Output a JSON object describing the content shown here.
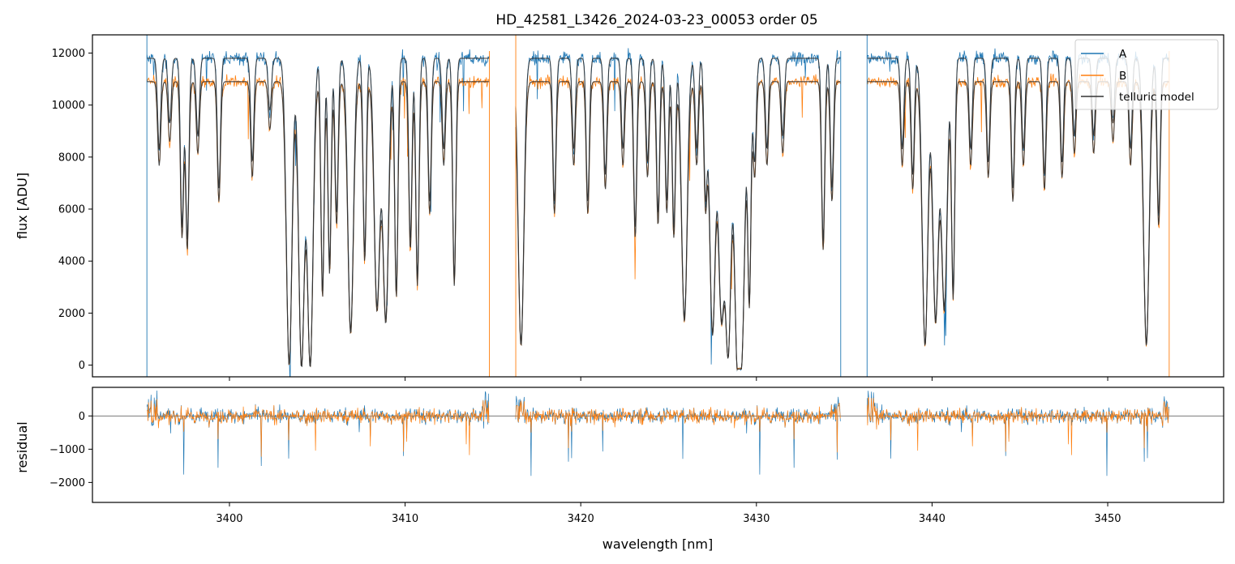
{
  "chart_data": [
    {
      "type": "line",
      "title": "HD_42581_L3426_2024-03-23_00053  order 05",
      "ylabel": "flux [ADU]",
      "xlim": [
        3392.2,
        3456.6
      ],
      "ylim": [
        -450,
        12700
      ],
      "x_ticks": [
        3400,
        3410,
        3420,
        3430,
        3440,
        3450
      ],
      "y_ticks": [
        0,
        2000,
        4000,
        6000,
        8000,
        10000,
        12000
      ],
      "y_tick_labels": [
        "0",
        "2000",
        "4000",
        "6000",
        "8000",
        "10000",
        "12000"
      ],
      "legend": {
        "placement": "top-right",
        "entries": [
          "A",
          "B",
          "telluric model"
        ]
      },
      "series": [
        {
          "name": "A",
          "color": "#1f77b4",
          "continuum": 11800
        },
        {
          "name": "B",
          "color": "#ff7f0e",
          "continuum": 10900
        },
        {
          "name": "telluric model",
          "color": "#333333"
        }
      ],
      "data_segments": [
        [
          3395.3,
          3414.8
        ],
        [
          3416.3,
          3434.8
        ],
        [
          3436.3,
          3453.5
        ]
      ],
      "absorption_lines": [
        [
          3396.0,
          3500
        ],
        [
          3396.6,
          2500
        ],
        [
          3397.3,
          6500
        ],
        [
          3397.6,
          7000
        ],
        [
          3398.2,
          3000
        ],
        [
          3399.4,
          5000
        ],
        [
          3401.3,
          4000
        ],
        [
          3402.3,
          2000
        ],
        [
          3403.4,
          11800
        ],
        [
          3404.1,
          11800
        ],
        [
          3404.6,
          11800
        ],
        [
          3405.3,
          9000
        ],
        [
          3405.7,
          8000
        ],
        [
          3406.1,
          6000
        ],
        [
          3406.9,
          10500
        ],
        [
          3407.7,
          7500
        ],
        [
          3408.4,
          9500
        ],
        [
          3408.9,
          10000
        ],
        [
          3409.5,
          9000
        ],
        [
          3410.3,
          7000
        ],
        [
          3410.7,
          8500
        ],
        [
          3411.4,
          5500
        ],
        [
          3412.2,
          3500
        ],
        [
          3412.8,
          8500
        ],
        [
          3416.6,
          11000
        ],
        [
          3418.5,
          5500
        ],
        [
          3419.6,
          3500
        ],
        [
          3420.4,
          5500
        ],
        [
          3421.4,
          4500
        ],
        [
          3422.4,
          3500
        ],
        [
          3423.1,
          6500
        ],
        [
          3423.8,
          4000
        ],
        [
          3424.4,
          6000
        ],
        [
          3424.9,
          5500
        ],
        [
          3425.3,
          6500
        ],
        [
          3425.9,
          10000
        ],
        [
          3426.6,
          3500
        ],
        [
          3427.1,
          5000
        ],
        [
          3427.5,
          10500
        ],
        [
          3428.0,
          9500
        ],
        [
          3428.4,
          11000
        ],
        [
          3428.9,
          10500
        ],
        [
          3429.2,
          9500
        ],
        [
          3429.6,
          9000
        ],
        [
          3429.9,
          4000
        ],
        [
          3430.6,
          3500
        ],
        [
          3431.5,
          3000
        ],
        [
          3433.8,
          7000
        ],
        [
          3434.3,
          5000
        ],
        [
          3438.3,
          3500
        ],
        [
          3438.9,
          4500
        ],
        [
          3439.6,
          11000
        ],
        [
          3440.2,
          10000
        ],
        [
          3440.7,
          9500
        ],
        [
          3441.2,
          9000
        ],
        [
          3442.2,
          3500
        ],
        [
          3443.2,
          4000
        ],
        [
          3444.6,
          5000
        ],
        [
          3445.2,
          3500
        ],
        [
          3446.4,
          4500
        ],
        [
          3447.4,
          4000
        ],
        [
          3448.1,
          3000
        ],
        [
          3449.2,
          3000
        ],
        [
          3450.3,
          2500
        ],
        [
          3451.3,
          3500
        ],
        [
          3452.2,
          11000
        ],
        [
          3452.9,
          6000
        ]
      ]
    },
    {
      "type": "line",
      "xlabel": "wavelength [nm]",
      "ylabel": "residual",
      "xlim": [
        3392.2,
        3456.6
      ],
      "ylim": [
        -2600,
        860
      ],
      "x_ticks": [
        3400,
        3410,
        3420,
        3430,
        3440,
        3450
      ],
      "x_tick_labels": [
        "3400",
        "3410",
        "3420",
        "3430",
        "3440",
        "3450"
      ],
      "y_ticks": [
        -2000,
        -1000,
        0
      ],
      "y_tick_labels": [
        "−2000",
        "−1000",
        "0"
      ],
      "zero_line": true,
      "series": [
        {
          "name": "A",
          "color": "#1f77b4"
        },
        {
          "name": "B",
          "color": "#ff7f0e"
        }
      ],
      "data_segments": [
        [
          3395.3,
          3414.8
        ],
        [
          3416.3,
          3434.8
        ],
        [
          3436.3,
          3453.5
        ]
      ]
    }
  ]
}
